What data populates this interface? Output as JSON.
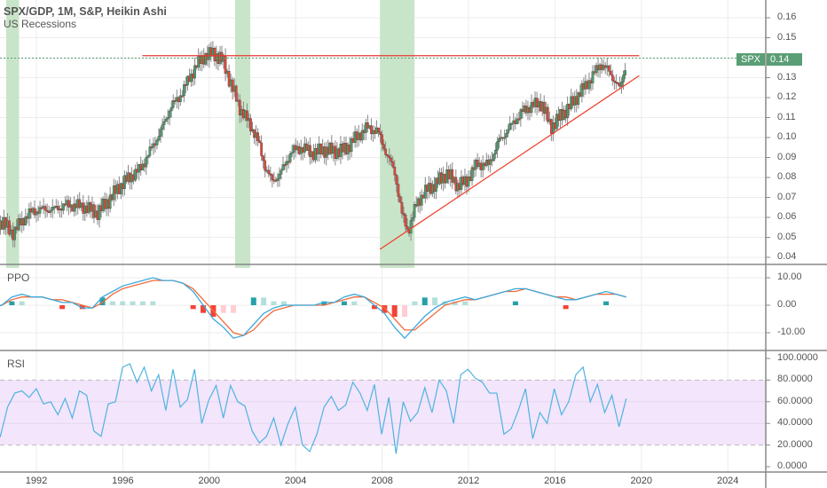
{
  "header": {
    "title": "SPX/GDP, 1M, S&P, Heikin Ashi",
    "subtitle": "US Recessions"
  },
  "panes": {
    "main": {
      "label": "SPX",
      "last_value": "0.14"
    },
    "ppo": {
      "label": "PPO"
    },
    "rsi": {
      "label": "RSI"
    }
  },
  "colors": {
    "up": "#4f9a6a",
    "down": "#e0483a",
    "recession": "#c9e5c9",
    "resistance": "#e53935",
    "support": "#f0432f",
    "ppo_line": "#3aa9dd",
    "ppo_signal": "#f26b3a",
    "hist_pos": "#26a0a7",
    "hist_pos_light": "#b2dfdb",
    "hist_neg": "#f44336",
    "hist_neg_light": "#ffcdd2",
    "rsi_line": "#4db4e0",
    "rsi_band": "#f3e5fc",
    "last_tag": "#5a9e76"
  },
  "chart_data": [
    {
      "type": "candlestick",
      "title": "SPX/GDP, 1M, S&P, Heikin Ashi",
      "overlay": "US Recessions",
      "xlabel": "",
      "ylabel": "",
      "x_ticks": [
        "1992",
        "1996",
        "2000",
        "2004",
        "2008",
        "2012",
        "2016",
        "2020",
        "2024"
      ],
      "y_ticks": [
        "0.16",
        "0.15",
        "0.14",
        "0.13",
        "0.12",
        "0.11",
        "0.10",
        "0.09",
        "0.08",
        "0.07",
        "0.06",
        "0.05",
        "0.04"
      ],
      "ylim": [
        0.036,
        0.17
      ],
      "recessions": [
        [
          1990.6,
          1991.2
        ],
        [
          2001.2,
          2001.9
        ],
        [
          2007.9,
          2009.5
        ]
      ],
      "lines": [
        {
          "name": "resistance",
          "from": [
            1996.9,
            0.141
          ],
          "to": [
            2019.9,
            0.141
          ]
        },
        {
          "name": "support",
          "from": [
            2007.9,
            0.044
          ],
          "to": [
            2019.9,
            0.131
          ]
        }
      ],
      "last_value": 0.14,
      "x": [
        1989.0,
        1989.5,
        1990.0,
        1990.5,
        1990.9,
        1991.3,
        1991.8,
        1992.3,
        1992.8,
        1993.3,
        1993.8,
        1994.3,
        1994.8,
        1995.3,
        1995.8,
        1996.3,
        1996.8,
        1997.3,
        1997.8,
        1998.2,
        1998.6,
        1999.0,
        1999.4,
        1999.8,
        2000.2,
        2000.6,
        2001.0,
        2001.4,
        2001.8,
        2002.2,
        2002.6,
        2002.9,
        2003.3,
        2003.8,
        2004.3,
        2004.8,
        2005.3,
        2005.8,
        2006.3,
        2006.8,
        2007.3,
        2007.8,
        2008.2,
        2008.6,
        2008.9,
        2009.2,
        2009.6,
        2010.0,
        2010.5,
        2011.0,
        2011.5,
        2011.9,
        2012.4,
        2012.9,
        2013.4,
        2013.9,
        2014.4,
        2014.9,
        2015.4,
        2015.8,
        2016.2,
        2016.7,
        2017.2,
        2017.7,
        2018.1,
        2018.5,
        2018.8,
        2019.0,
        2019.3
      ],
      "values": [
        0.061,
        0.06,
        0.058,
        0.057,
        0.052,
        0.058,
        0.063,
        0.064,
        0.064,
        0.066,
        0.066,
        0.065,
        0.062,
        0.068,
        0.075,
        0.08,
        0.084,
        0.094,
        0.104,
        0.115,
        0.12,
        0.128,
        0.136,
        0.141,
        0.142,
        0.139,
        0.127,
        0.115,
        0.108,
        0.1,
        0.085,
        0.078,
        0.082,
        0.093,
        0.095,
        0.092,
        0.094,
        0.093,
        0.094,
        0.1,
        0.105,
        0.103,
        0.092,
        0.082,
        0.062,
        0.053,
        0.067,
        0.073,
        0.077,
        0.082,
        0.076,
        0.078,
        0.087,
        0.086,
        0.098,
        0.105,
        0.112,
        0.116,
        0.117,
        0.105,
        0.11,
        0.116,
        0.123,
        0.13,
        0.137,
        0.133,
        0.128,
        0.124,
        0.138
      ]
    },
    {
      "type": "line",
      "title": "PPO",
      "y_ticks": [
        "10.00",
        "0.00",
        "-10.00"
      ],
      "ylim": [
        -15,
        14
      ],
      "series": [
        {
          "name": "PPO",
          "values": [
            3,
            1,
            -1,
            0,
            3,
            4,
            3,
            3,
            2,
            1,
            1,
            -1,
            -1,
            3,
            5,
            7,
            8,
            9,
            10,
            9,
            9,
            8,
            5,
            0,
            -5,
            -8,
            -12,
            -11,
            -7,
            -3,
            -1,
            0,
            0,
            0,
            0,
            1,
            1,
            3,
            4,
            3,
            0,
            -3,
            -8,
            -12,
            -8,
            -4,
            -1,
            1,
            2,
            3,
            2,
            3,
            4,
            5,
            6,
            6,
            5,
            4,
            3,
            2,
            2,
            3,
            4,
            5,
            4,
            3
          ]
        },
        {
          "name": "Signal",
          "values": [
            3,
            2,
            0,
            0,
            2,
            3,
            3,
            3,
            2,
            2,
            1,
            0,
            -1,
            1,
            4,
            6,
            7,
            8,
            9,
            9,
            9,
            8,
            6,
            2,
            -2,
            -6,
            -10,
            -11,
            -9,
            -5,
            -2,
            -1,
            0,
            0,
            0,
            0,
            1,
            2,
            3,
            3,
            1,
            -1,
            -5,
            -9,
            -9,
            -6,
            -3,
            0,
            1,
            2,
            2,
            3,
            4,
            5,
            5,
            6,
            5,
            4,
            3,
            3,
            2,
            3,
            4,
            4,
            4,
            3
          ]
        }
      ]
    },
    {
      "type": "line",
      "title": "RSI",
      "y_ticks": [
        "100.0000",
        "80.0000",
        "60.0000",
        "40.0000",
        "20.0000",
        "0.0000"
      ],
      "ylim": [
        0,
        100
      ],
      "bands": [
        20,
        80
      ],
      "series": [
        {
          "name": "RSI",
          "values": [
            58,
            50,
            66,
            36,
            28,
            55,
            68,
            70,
            64,
            72,
            58,
            60,
            48,
            63,
            45,
            70,
            66,
            33,
            28,
            58,
            60,
            92,
            95,
            78,
            92,
            70,
            85,
            52,
            90,
            55,
            62,
            90,
            40,
            62,
            75,
            45,
            75,
            60,
            56,
            33,
            22,
            28,
            45,
            20,
            40,
            55,
            20,
            14,
            30,
            55,
            65,
            52,
            57,
            78,
            68,
            52,
            76,
            30,
            64,
            12,
            60,
            42,
            50,
            73,
            50,
            80,
            70,
            40,
            85,
            90,
            82,
            78,
            68,
            68,
            30,
            35,
            52,
            72,
            26,
            50,
            40,
            72,
            48,
            60,
            85,
            92,
            60,
            76,
            50,
            66,
            37,
            63
          ]
        }
      ]
    }
  ],
  "axes": {
    "time": [
      "1992",
      "1996",
      "2000",
      "2004",
      "2008",
      "2012",
      "2016",
      "2020",
      "2024"
    ],
    "main_ticks": [
      "0.16",
      "0.15",
      "0.14",
      "0.13",
      "0.12",
      "0.11",
      "0.10",
      "0.09",
      "0.08",
      "0.07",
      "0.06",
      "0.05",
      "0.04"
    ],
    "ppo_ticks": [
      "10.00",
      "0.00",
      "-10.00"
    ],
    "rsi_ticks": [
      "100.0000",
      "80.0000",
      "60.0000",
      "40.0000",
      "20.0000",
      "0.0000"
    ]
  }
}
